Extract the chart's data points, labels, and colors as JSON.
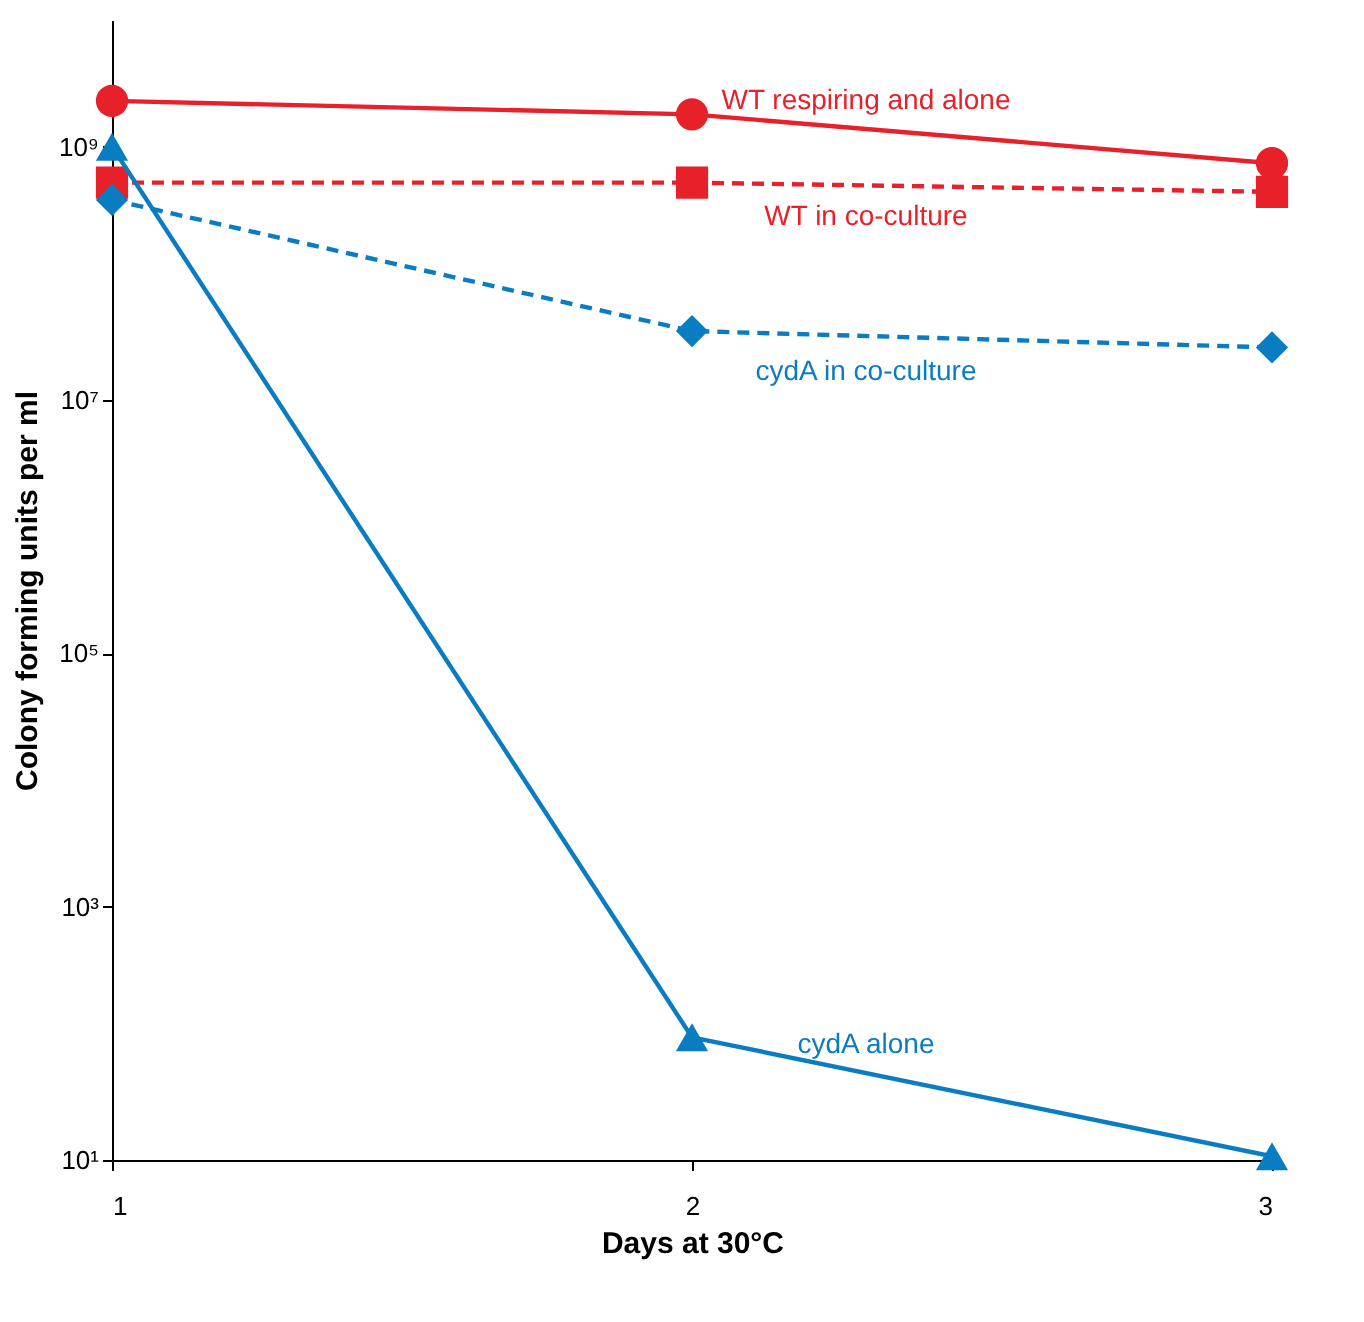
{
  "chart_data": {
    "type": "line",
    "xlabel": "Days at 30°C",
    "ylabel": "Colony forming units per ml",
    "x": [
      1,
      2,
      3
    ],
    "xlim": [
      1,
      3
    ],
    "xticks": [
      1,
      2,
      3
    ],
    "ylim": [
      10,
      10000000000
    ],
    "yticks": [
      {
        "value": 10,
        "label": "10¹"
      },
      {
        "value": 1000,
        "label": "10³"
      },
      {
        "value": 100000,
        "label": "10⁵"
      },
      {
        "value": 10000000,
        "label": "10⁷"
      },
      {
        "value": 1000000000,
        "label": "10⁹"
      }
    ],
    "log": "y",
    "grid": false,
    "series": [
      {
        "name": "WT respiring and alone",
        "color": "#e8202a",
        "marker": "circle",
        "line_style": "solid",
        "values": [
          2300000000,
          1800000000,
          740000000
        ]
      },
      {
        "name": "WT in co-culture",
        "color": "#e8202a",
        "marker": "square",
        "line_style": "dashed",
        "values": [
          520000000,
          520000000,
          440000000
        ]
      },
      {
        "name": "cydA in co-culture",
        "color": "#0a7cc2",
        "marker": "diamond",
        "line_style": "dashed",
        "values": [
          380000000,
          35000000,
          26000000
        ]
      },
      {
        "name": "cydA alone",
        "color": "#0a7cc2",
        "marker": "triangle",
        "line_style": "solid",
        "values": [
          1000000000,
          93,
          10.7
        ]
      }
    ]
  }
}
